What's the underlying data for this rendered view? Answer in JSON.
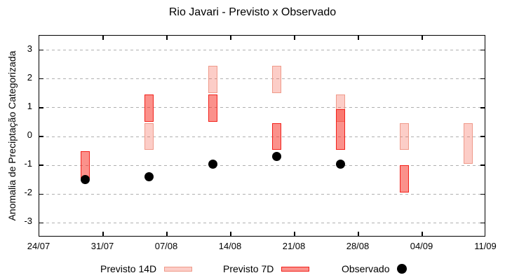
{
  "colors": {
    "box14_fill": "rgba(244,88,70,0.30)",
    "box14_border": "#ef9a8a",
    "box7_fill": "rgba(247,45,33,0.52)",
    "box7_border": "#f2211b",
    "observed": "#000000",
    "grid": "#b0b0b0",
    "frame": "#000000"
  },
  "chart_data": {
    "type": "interval-bar+scatter",
    "title": "Rio Javari - Previsto x Observado",
    "xlabel": "",
    "ylabel": "Anomalia de Preciptação Categorizada",
    "ylim": [
      -3.5,
      3.5
    ],
    "y_ticks": [
      3,
      2,
      1,
      0,
      -1,
      -2,
      -3
    ],
    "x_range_days": [
      0,
      49
    ],
    "x_ticks": [
      {
        "label": "24/07",
        "day": 0
      },
      {
        "label": "31/07",
        "day": 7
      },
      {
        "label": "07/08",
        "day": 14
      },
      {
        "label": "14/08",
        "day": 21
      },
      {
        "label": "21/08",
        "day": 28
      },
      {
        "label": "28/08",
        "day": 35
      },
      {
        "label": "04/09",
        "day": 42
      },
      {
        "label": "11/09",
        "day": 49
      }
    ],
    "grid": "horizontal-dashed",
    "legend_position": "below-plot",
    "series": [
      {
        "name": "Previsto 14D",
        "type": "interval-box",
        "boxes": [
          {
            "date": "05/08",
            "day": 12,
            "lo": -0.45,
            "hi": 0.45
          },
          {
            "date": "12/08",
            "day": 19,
            "lo": 1.5,
            "hi": 2.45
          },
          {
            "date": "19/08",
            "day": 26,
            "lo": 1.5,
            "hi": 2.45
          },
          {
            "date": "26/08",
            "day": 33,
            "lo": 0.5,
            "hi": 1.45
          },
          {
            "date": "02/09",
            "day": 40,
            "lo": -0.45,
            "hi": 0.45
          },
          {
            "date": "09/09",
            "day": 47,
            "lo": -0.95,
            "hi": 0.45
          }
        ]
      },
      {
        "name": "Previsto 7D",
        "type": "interval-box",
        "boxes": [
          {
            "date": "29/07",
            "day": 5,
            "lo": -1.45,
            "hi": -0.5
          },
          {
            "date": "05/08",
            "day": 12,
            "lo": 0.5,
            "hi": 1.45
          },
          {
            "date": "12/08",
            "day": 19,
            "lo": 0.5,
            "hi": 1.45
          },
          {
            "date": "19/08",
            "day": 26,
            "lo": -0.45,
            "hi": 0.45
          },
          {
            "date": "26/08",
            "day": 33,
            "lo": -0.45,
            "hi": 0.95
          },
          {
            "date": "02/09",
            "day": 40,
            "lo": -1.95,
            "hi": -1.0
          }
        ]
      },
      {
        "name": "Observado",
        "type": "scatter",
        "points": [
          {
            "date": "29/07",
            "day": 5,
            "y": -1.5
          },
          {
            "date": "05/08",
            "day": 12,
            "y": -1.4
          },
          {
            "date": "12/08",
            "day": 19,
            "y": -0.95
          },
          {
            "date": "19/08",
            "day": 26,
            "y": -0.7
          },
          {
            "date": "26/08",
            "day": 33,
            "y": -0.95
          }
        ]
      }
    ]
  }
}
